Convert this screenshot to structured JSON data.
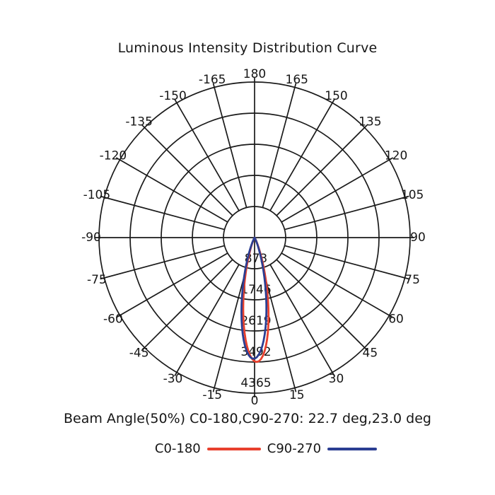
{
  "title": "Luminous Intensity Distribution Curve",
  "footer": {
    "beam_angle_text": "Beam Angle(50%) C0-180,C90-270: 22.7 deg,23.0 deg"
  },
  "legend": [
    {
      "label": "C0-180",
      "color": "#e8402d"
    },
    {
      "label": "C90-270",
      "color": "#2b3e92"
    }
  ],
  "colors": {
    "grid": "#1a1a1a",
    "text": "#161616",
    "background": "#ffffff"
  },
  "chart_data": {
    "type": "line",
    "subtype": "polar-intensity-distribution",
    "title": "Luminous Intensity Distribution Curve",
    "angle_ticks_deg": [
      -165,
      -150,
      -135,
      -120,
      -105,
      -90,
      -75,
      -60,
      -45,
      -30,
      -15,
      0,
      15,
      30,
      45,
      60,
      75,
      90,
      105,
      120,
      135,
      150,
      165,
      180
    ],
    "angle_tick_step_deg": 15,
    "radial_ticks_cd": [
      873,
      1746,
      2619,
      3492,
      4365
    ],
    "rmax_cd": 4365,
    "grid": true,
    "legend_position": "bottom",
    "beam_angle_label": "Beam Angle(50%) C0-180,C90-270: 22.7 deg,23.0 deg",
    "series": [
      {
        "name": "C0-180",
        "color": "#e8402d",
        "peak_cd": 3490,
        "peak_angle_deg": 1.0,
        "beam_angle_50pct_deg": 22.7,
        "points_deg_cd": [
          [
            -90,
            0
          ],
          [
            -45,
            0
          ],
          [
            -40,
            0
          ],
          [
            -35,
            2
          ],
          [
            -30,
            16
          ],
          [
            -25,
            83
          ],
          [
            -20,
            313
          ],
          [
            -15,
            872
          ],
          [
            -10,
            1821
          ],
          [
            -5,
            2878
          ],
          [
            0,
            3471
          ],
          [
            5,
            3204
          ],
          [
            10,
            2259
          ],
          [
            15,
            1211
          ],
          [
            20,
            488
          ],
          [
            25,
            146
          ],
          [
            30,
            32
          ],
          [
            35,
            5
          ],
          [
            40,
            1
          ],
          [
            45,
            0
          ],
          [
            90,
            0
          ]
        ]
      },
      {
        "name": "C90-270",
        "color": "#2b3e92",
        "peak_cd": 3400,
        "peak_angle_deg": -0.5,
        "beam_angle_50pct_deg": 23.0,
        "points_deg_cd": [
          [
            -90,
            0
          ],
          [
            -45,
            0
          ],
          [
            -40,
            0
          ],
          [
            -35,
            5
          ],
          [
            -30,
            29
          ],
          [
            -25,
            135
          ],
          [
            -20,
            451
          ],
          [
            -15,
            1124
          ],
          [
            -10,
            2120
          ],
          [
            -5,
            3059
          ],
          [
            0,
            3396
          ],
          [
            5,
            2904
          ],
          [
            10,
            1908
          ],
          [
            15,
            958
          ],
          [
            20,
            363
          ],
          [
            25,
            102
          ],
          [
            30,
            21
          ],
          [
            35,
            3
          ],
          [
            40,
            0
          ],
          [
            45,
            0
          ],
          [
            90,
            0
          ]
        ]
      }
    ]
  }
}
